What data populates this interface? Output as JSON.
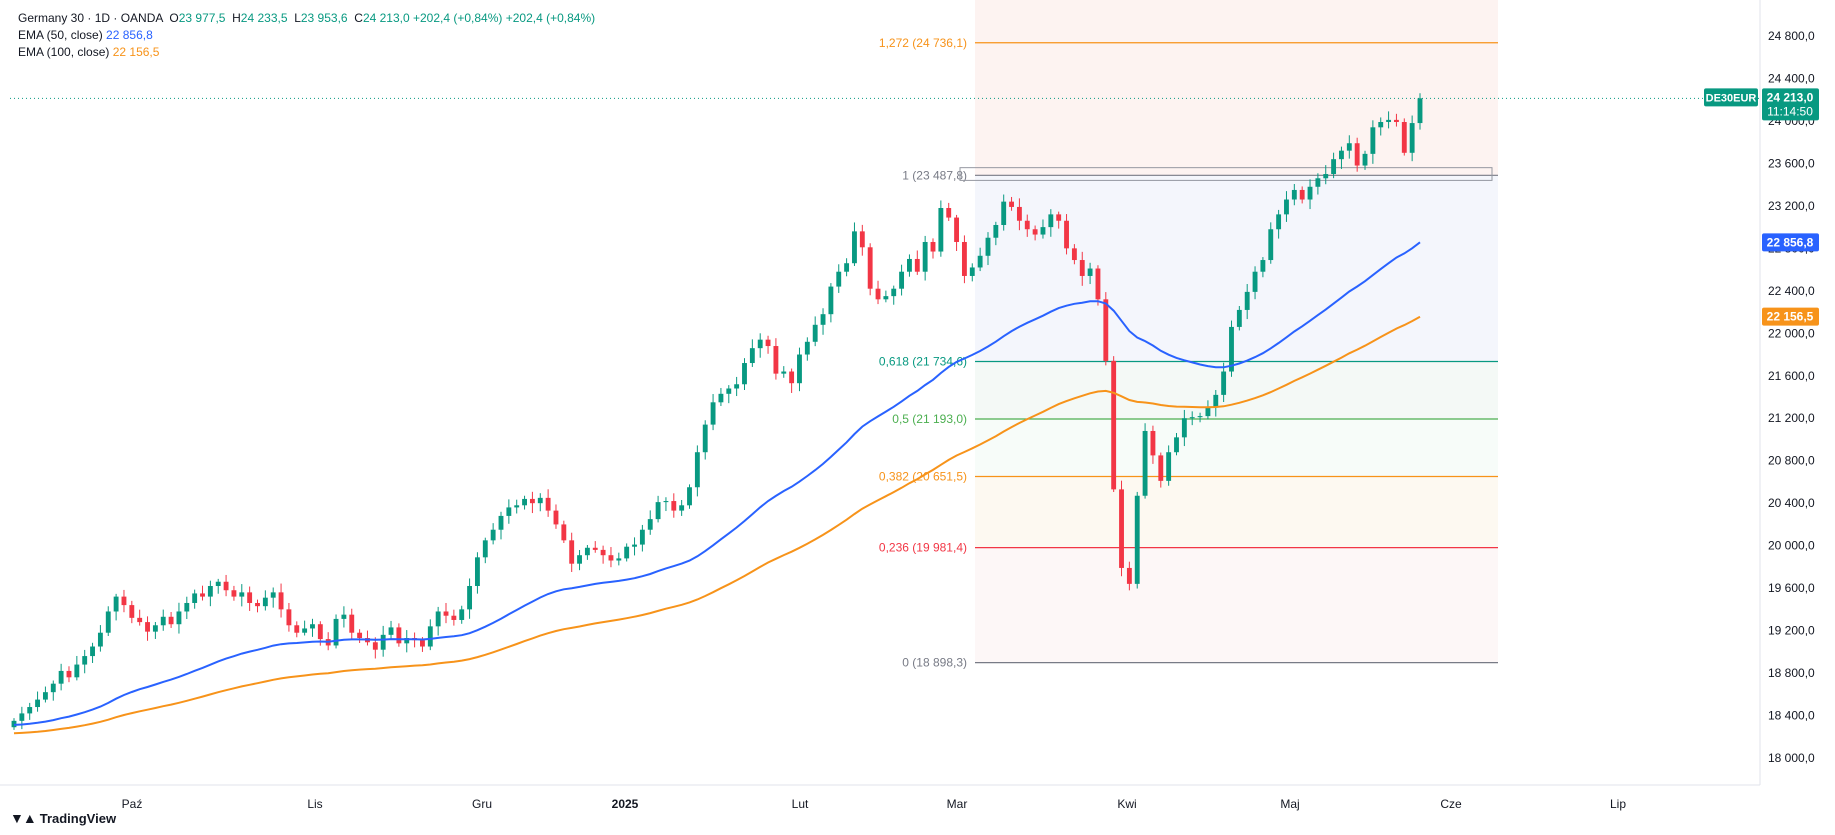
{
  "header": {
    "symbol": "Germany 30 · 1D · OANDA",
    "ohlc": [
      {
        "k": "O",
        "v": "23 977,5"
      },
      {
        "k": "H",
        "v": "24 233,5"
      },
      {
        "k": "L",
        "v": "23 953,6"
      },
      {
        "k": "C",
        "v": "24 213,0"
      }
    ],
    "change": "+202,4 (+0,84%)",
    "change2": "+202,4 (+0,84%)"
  },
  "indicators": [
    {
      "label": "EMA (50, close)",
      "value": "22 856,8",
      "color": "#2962ff"
    },
    {
      "label": "EMA (100, close)",
      "value": "22 156,5",
      "color": "#f7931a"
    }
  ],
  "brand": "TradingView",
  "colors": {
    "up": "#089981",
    "down": "#f23645",
    "grid": "#f0f3fa"
  },
  "chart_data": {
    "type": "candlestick",
    "y_axis": {
      "ticks": [
        "24 800,0",
        "24 400,0",
        "24 000,0",
        "23 600,0",
        "23 200,0",
        "22 800,0",
        "22 400,0",
        "22 000,0",
        "21 600,0",
        "21 200,0",
        "20 800,0",
        "20 400,0",
        "20 000,0",
        "19 600,0",
        "19 200,0",
        "18 800,0",
        "18 400,0",
        "18 000,0"
      ],
      "tick_values": [
        24800,
        24400,
        24000,
        23600,
        23200,
        22800,
        22400,
        22000,
        21600,
        21200,
        20800,
        20400,
        20000,
        19600,
        19200,
        18800,
        18400,
        18000
      ],
      "range": [
        17950,
        25050
      ]
    },
    "x_axis": {
      "labels": [
        "Paź",
        "Lis",
        "Gru",
        "2025",
        "Lut",
        "Mar",
        "Kwi",
        "Maj",
        "Cze",
        "Lip"
      ]
    },
    "price_tag": {
      "symbol": "DE30EUR",
      "value": "24 213,0",
      "countdown": "11:14:50",
      "y": 24213
    },
    "ema_tags": [
      {
        "value": "22 856,8",
        "y": 22856.8,
        "color": "#2962ff"
      },
      {
        "value": "22 156,5",
        "y": 22156.5,
        "color": "#f7931a"
      }
    ],
    "fibonacci": [
      {
        "label": "1,272 (24 736,1)",
        "value": 24736.1,
        "color": "#f7931a"
      },
      {
        "label": "1 (23 487,8)",
        "value": 23487.8,
        "color": "#787b86"
      },
      {
        "label": "0,618 (21 734,6)",
        "value": 21734.6,
        "color": "#089981"
      },
      {
        "label": "0,5 (21 193,0)",
        "value": 21193.0,
        "color": "#4caf50"
      },
      {
        "label": "0,382 (20 651,5)",
        "value": 20651.5,
        "color": "#f7931a"
      },
      {
        "label": "0,236 (19 981,4)",
        "value": 19981.4,
        "color": "#f23645"
      },
      {
        "label": "0 (18 898,3)",
        "value": 18898.3,
        "color": "#787b86"
      }
    ],
    "candles_close": [
      18350,
      18420,
      18480,
      18550,
      18620,
      18700,
      18820,
      18760,
      18880,
      18960,
      19050,
      19180,
      19380,
      19520,
      19440,
      19320,
      19280,
      19190,
      19250,
      19330,
      19260,
      19380,
      19460,
      19550,
      19520,
      19620,
      19660,
      19580,
      19520,
      19560,
      19460,
      19430,
      19510,
      19560,
      19400,
      19250,
      19180,
      19220,
      19260,
      19120,
      19060,
      19310,
      19350,
      19180,
      19130,
      19090,
      19020,
      19160,
      19230,
      19080,
      19130,
      19110,
      19050,
      19240,
      19380,
      19340,
      19300,
      19400,
      19620,
      19890,
      20050,
      20150,
      20280,
      20360,
      20380,
      20440,
      20400,
      20450,
      20330,
      20200,
      20050,
      19830,
      19910,
      19980,
      19960,
      19910,
      19860,
      19880,
      19990,
      20010,
      20150,
      20250,
      20410,
      20420,
      20330,
      20380,
      20550,
      20880,
      21140,
      21350,
      21430,
      21480,
      21520,
      21720,
      21860,
      21940,
      21880,
      21620,
      21640,
      21530,
      21800,
      21920,
      22080,
      22180,
      22440,
      22580,
      22660,
      22960,
      22810,
      22420,
      22320,
      22350,
      22420,
      22580,
      22700,
      22580,
      22860,
      22770,
      23180,
      23090,
      22860,
      22540,
      22620,
      22730,
      22900,
      23020,
      23240,
      23190,
      23060,
      22980,
      22930,
      23000,
      23120,
      23060,
      22800,
      22690,
      22540,
      22610,
      22320,
      21740,
      20530,
      19790,
      19640,
      20470,
      21080,
      20850,
      20610,
      20880,
      21020,
      21200,
      21210,
      21220,
      21300,
      21420,
      21640,
      22060,
      22220,
      22390,
      22580,
      22690,
      22980,
      23120,
      23260,
      23350,
      23260,
      23380,
      23460,
      23500,
      23640,
      23720,
      23790,
      23580,
      23690,
      23940,
      23990,
      24010,
      23990,
      23700,
      23980,
      24213
    ],
    "ema50_final": 22856.8,
    "ema100_final": 22156.5
  }
}
